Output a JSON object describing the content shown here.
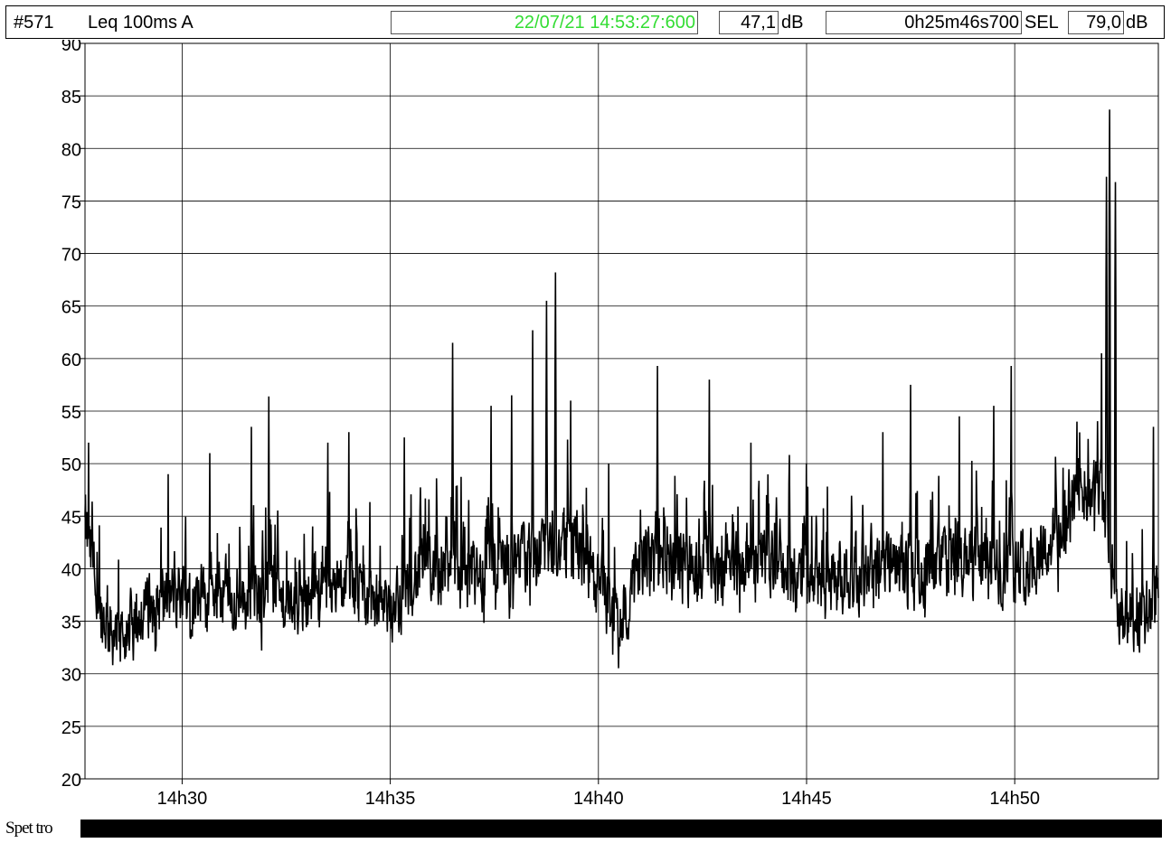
{
  "header": {
    "id": "#571",
    "measure": "Leq 100ms  A",
    "datetime": "22/07/21 14:53:27:600",
    "datetime_color": "#33dd33",
    "level_value": "47,1",
    "level_unit": "dB",
    "duration": "0h25m46s700",
    "sel_label": "SEL",
    "sel_value": "79,0",
    "sel_unit": "dB"
  },
  "footer": {
    "label": "Spet tro"
  },
  "chart_data": {
    "type": "line",
    "title": "",
    "xlabel": "",
    "ylabel": "",
    "x_unit": "minutes",
    "xlim": [
      "14h27m40s",
      "14h53m27s"
    ],
    "x_ticks": [
      "14h30",
      "14h35",
      "14h40",
      "14h45",
      "14h50"
    ],
    "ylim": [
      20,
      90
    ],
    "y_ticks": [
      20,
      25,
      30,
      35,
      40,
      45,
      50,
      55,
      60,
      65,
      70,
      75,
      80,
      85,
      90
    ],
    "grid": true,
    "line_color": "#000000",
    "series": [
      {
        "values_desc": "noise level in dB(A)",
        "baseline_points": [
          [
            "14h27m40s",
            44
          ],
          [
            "14h28m00s",
            36
          ],
          [
            "14h28m30s",
            33
          ],
          [
            "14h29m00s",
            36
          ],
          [
            "14h29m30s",
            37
          ],
          [
            "14h30m00s",
            38
          ],
          [
            "14h30m30s",
            37
          ],
          [
            "14h31m00s",
            38
          ],
          [
            "14h31m30s",
            37
          ],
          [
            "14h32m00s",
            38
          ],
          [
            "14h32m30s",
            36
          ],
          [
            "14h33m00s",
            37
          ],
          [
            "14h33m30s",
            38
          ],
          [
            "14h34m00s",
            38
          ],
          [
            "14h34m30s",
            37
          ],
          [
            "14h35m00s",
            36
          ],
          [
            "14h35m30s",
            39
          ],
          [
            "14h36m00s",
            40
          ],
          [
            "14h36m30s",
            39
          ],
          [
            "14h37m00s",
            39
          ],
          [
            "14h37m30s",
            40
          ],
          [
            "14h38m00s",
            41
          ],
          [
            "14h38m30s",
            41
          ],
          [
            "14h39m00s",
            42
          ],
          [
            "14h39m30s",
            42
          ],
          [
            "14h40m00s",
            38
          ],
          [
            "14h40m30s",
            35
          ],
          [
            "14h41m00s",
            40
          ],
          [
            "14h41m30s",
            41
          ],
          [
            "14h42m00s",
            40
          ],
          [
            "14h42m30s",
            40
          ],
          [
            "14h43m00s",
            39
          ],
          [
            "14h43m30s",
            41
          ],
          [
            "14h44m00s",
            41
          ],
          [
            "14h44m30s",
            40
          ],
          [
            "14h45m00s",
            40
          ],
          [
            "14h45m30s",
            38
          ],
          [
            "14h46m00s",
            39
          ],
          [
            "14h46m30s",
            40
          ],
          [
            "14h47m00s",
            40
          ],
          [
            "14h47m30s",
            39
          ],
          [
            "14h48m00s",
            41
          ],
          [
            "14h48m30s",
            40
          ],
          [
            "14h49m00s",
            41
          ],
          [
            "14h49m30s",
            40
          ],
          [
            "14h50m00s",
            40
          ],
          [
            "14h50m30s",
            41
          ],
          [
            "14h51m00s",
            43
          ],
          [
            "14h51m30s",
            47
          ],
          [
            "14h52m00s",
            48
          ],
          [
            "14h52m30s",
            35
          ],
          [
            "14h53m00s",
            34
          ],
          [
            "14h53m27s",
            38
          ]
        ],
        "peaks": [
          [
            "14h27m45s",
            52
          ],
          [
            "14h29m40s",
            49
          ],
          [
            "14h30m40s",
            51
          ],
          [
            "14h31m40s",
            53.5
          ],
          [
            "14h32m05s",
            56.4
          ],
          [
            "14h33m30s",
            52
          ],
          [
            "14h34m00s",
            53
          ],
          [
            "14h35m20s",
            52.5
          ],
          [
            "14h36m30s",
            61.5
          ],
          [
            "14h37m25s",
            55.5
          ],
          [
            "14h37m55s",
            56.5
          ],
          [
            "14h38m25s",
            62.7
          ],
          [
            "14h38m45s",
            65.5
          ],
          [
            "14h38m58s",
            68.2
          ],
          [
            "14h39m20s",
            56
          ],
          [
            "14h40m15s",
            50
          ],
          [
            "14h41m25s",
            59.3
          ],
          [
            "14h42m40s",
            58
          ],
          [
            "14h43m40s",
            52
          ],
          [
            "14h45m00s",
            50
          ],
          [
            "14h46m50s",
            53
          ],
          [
            "14h47m30s",
            57.5
          ],
          [
            "14h48m40s",
            54.5
          ],
          [
            "14h49m30s",
            55.5
          ],
          [
            "14h49m55s",
            59.3
          ],
          [
            "14h51m30s",
            54
          ],
          [
            "14h52m05s",
            60.5
          ],
          [
            "14h52m12s",
            77.3
          ],
          [
            "14h52m17s",
            83.7
          ],
          [
            "14h52m25s",
            76.8
          ],
          [
            "14h53m20s",
            53.5
          ]
        ]
      }
    ]
  }
}
